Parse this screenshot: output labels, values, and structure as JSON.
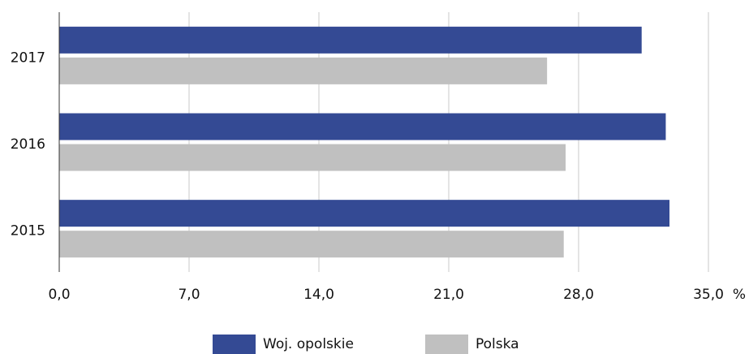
{
  "chart_data": {
    "type": "barh",
    "categories": [
      "2017",
      "2016",
      "2015"
    ],
    "series": [
      {
        "name": "Woj. opolskie",
        "color": "#344a94",
        "values": [
          31.4,
          32.7,
          32.9
        ]
      },
      {
        "name": "Polska",
        "color": "#c0c0c0",
        "values": [
          26.3,
          27.3,
          27.2
        ]
      }
    ],
    "x_label": "%",
    "xlim": [
      0,
      35
    ],
    "xticks": [
      {
        "value": 0,
        "label": "0,0"
      },
      {
        "value": 7,
        "label": "7,0"
      },
      {
        "value": 14,
        "label": "14,0"
      },
      {
        "value": 21,
        "label": "21,0"
      },
      {
        "value": 28,
        "label": "28,0"
      },
      {
        "value": 35,
        "label": "35,0"
      }
    ],
    "grid": true
  }
}
